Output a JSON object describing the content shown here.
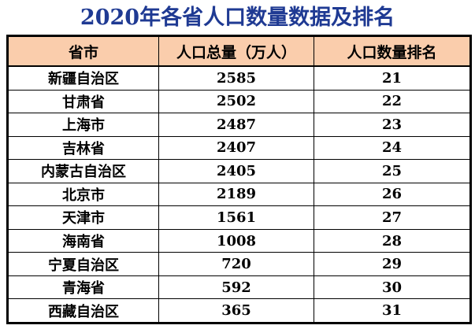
{
  "title": "2020年各省人口数量数据及排名",
  "colors": {
    "title": "#1F3A93",
    "header_bg": "#FACDAC",
    "border": "#000000",
    "row_bg": "#FFFFFF",
    "text": "#000000"
  },
  "chart_data": {
    "type": "table",
    "title": "2020年各省人口数量数据及排名",
    "columns": [
      "省市",
      "人口总量（万人）",
      "人口数量排名"
    ],
    "rows": [
      [
        "新疆自治区",
        "2585",
        "21"
      ],
      [
        "甘肃省",
        "2502",
        "22"
      ],
      [
        "上海市",
        "2487",
        "23"
      ],
      [
        "吉林省",
        "2407",
        "24"
      ],
      [
        "内蒙古自治区",
        "2405",
        "25"
      ],
      [
        "北京市",
        "2189",
        "26"
      ],
      [
        "天津市",
        "1561",
        "27"
      ],
      [
        "海南省",
        "1008",
        "28"
      ],
      [
        "宁夏自治区",
        "720",
        "29"
      ],
      [
        "青海省",
        "592",
        "30"
      ],
      [
        "西藏自治区",
        "365",
        "31"
      ]
    ],
    "layout": {
      "legend": "none",
      "grid": "all-borders",
      "header_position": "top"
    }
  }
}
